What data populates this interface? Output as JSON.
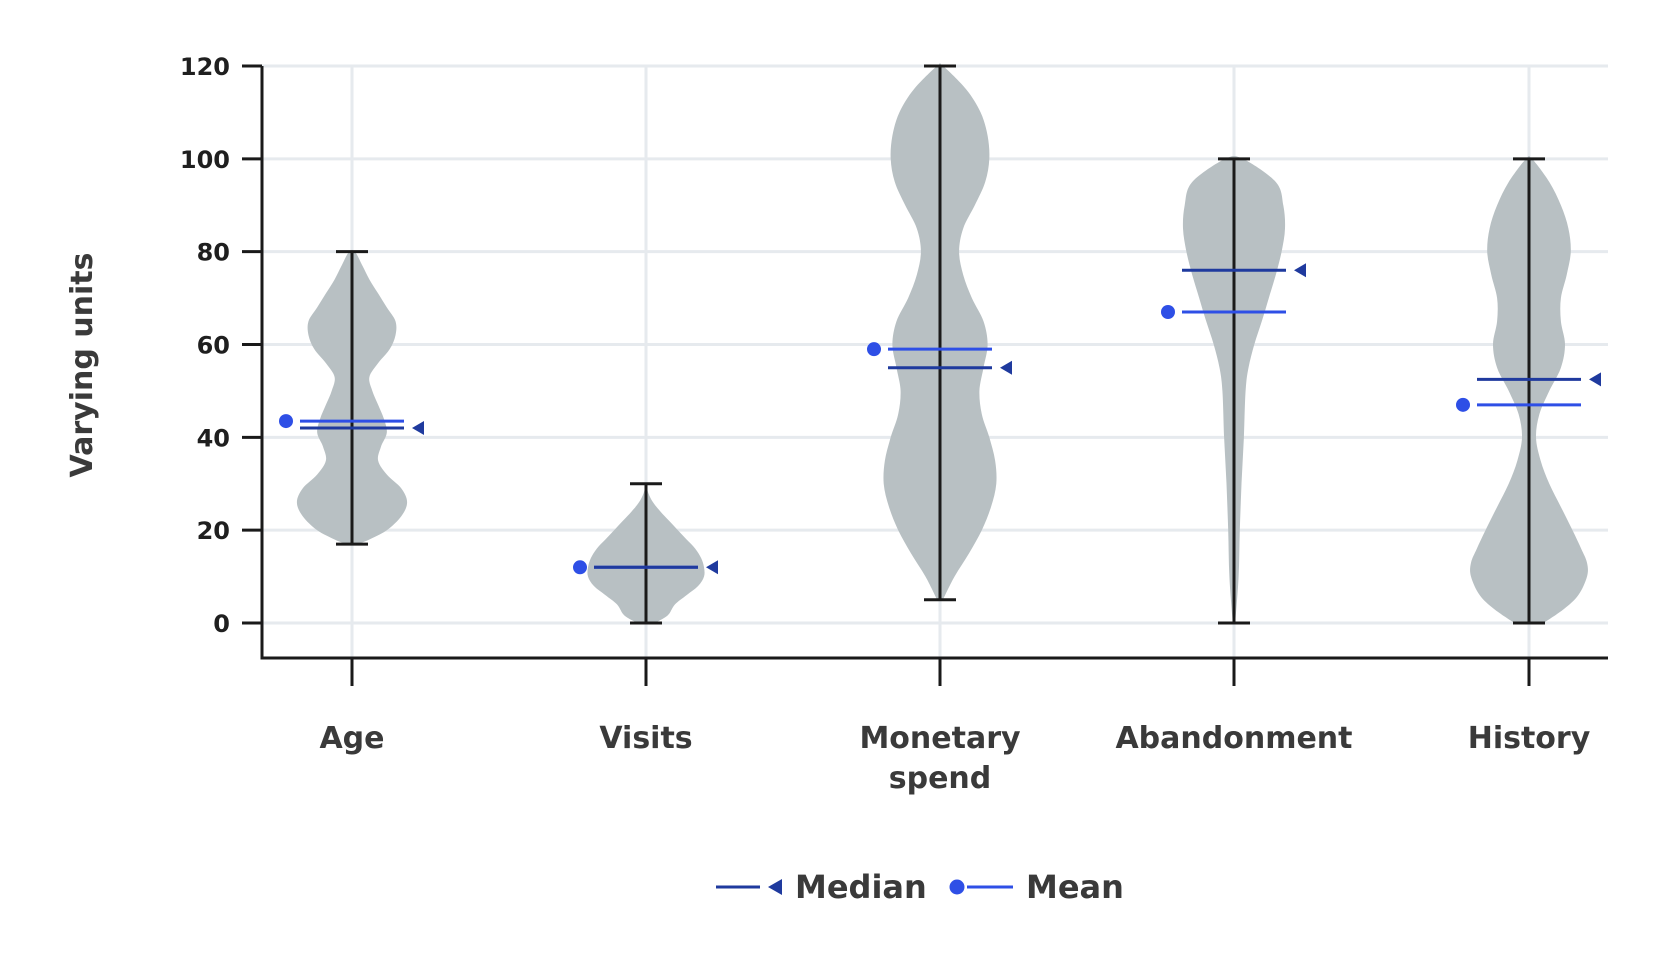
{
  "chart_data": {
    "type": "violin",
    "ylabel": "Varying units",
    "xlabel": "",
    "ylim": [
      -7.5,
      120
    ],
    "yticks": [
      0,
      20,
      40,
      60,
      80,
      100,
      120
    ],
    "grid": true,
    "legend_position": "bottom-center",
    "colors": {
      "violin": "#b8c0c3",
      "median": "#1f3a9e",
      "mean": "#2e4fe6",
      "whisker": "#1a1a1a",
      "grid": "#e6eaee",
      "axis": "#1a1a1a"
    },
    "legend": {
      "median_label": "Median",
      "mean_label": "Mean"
    },
    "categories": [
      {
        "label": [
          "Age"
        ],
        "min": 17,
        "max": 80,
        "median": 42,
        "mean": 43.5,
        "density": [
          [
            17,
            0.1
          ],
          [
            18,
            0.3
          ],
          [
            20,
            0.6
          ],
          [
            23,
            0.85
          ],
          [
            26,
            0.95
          ],
          [
            29,
            0.85
          ],
          [
            32,
            0.6
          ],
          [
            35,
            0.45
          ],
          [
            38,
            0.5
          ],
          [
            41,
            0.6
          ],
          [
            44,
            0.55
          ],
          [
            47,
            0.45
          ],
          [
            50,
            0.35
          ],
          [
            53,
            0.3
          ],
          [
            56,
            0.45
          ],
          [
            59,
            0.65
          ],
          [
            62,
            0.75
          ],
          [
            65,
            0.75
          ],
          [
            68,
            0.6
          ],
          [
            71,
            0.45
          ],
          [
            74,
            0.3
          ],
          [
            77,
            0.18
          ],
          [
            80,
            0.05
          ]
        ]
      },
      {
        "label": [
          "Visits"
        ],
        "min": 0,
        "max": 30,
        "median": 12,
        "mean": 12,
        "density": [
          [
            0,
            0.15
          ],
          [
            1,
            0.3
          ],
          [
            2,
            0.4
          ],
          [
            4,
            0.5
          ],
          [
            6,
            0.7
          ],
          [
            8,
            0.9
          ],
          [
            10,
            1.0
          ],
          [
            12,
            1.0
          ],
          [
            14,
            0.95
          ],
          [
            16,
            0.85
          ],
          [
            18,
            0.7
          ],
          [
            20,
            0.55
          ],
          [
            22,
            0.4
          ],
          [
            24,
            0.25
          ],
          [
            26,
            0.12
          ],
          [
            28,
            0.04
          ],
          [
            30,
            0.0
          ]
        ]
      },
      {
        "label": [
          "Monetary",
          "spend"
        ],
        "min": 5,
        "max": 120,
        "median": 55,
        "mean": 59,
        "density": [
          [
            5,
            0.05
          ],
          [
            10,
            0.25
          ],
          [
            15,
            0.5
          ],
          [
            20,
            0.72
          ],
          [
            25,
            0.88
          ],
          [
            30,
            0.97
          ],
          [
            35,
            0.95
          ],
          [
            40,
            0.85
          ],
          [
            45,
            0.72
          ],
          [
            50,
            0.68
          ],
          [
            55,
            0.75
          ],
          [
            60,
            0.82
          ],
          [
            65,
            0.75
          ],
          [
            70,
            0.55
          ],
          [
            75,
            0.4
          ],
          [
            80,
            0.33
          ],
          [
            85,
            0.4
          ],
          [
            90,
            0.6
          ],
          [
            95,
            0.78
          ],
          [
            100,
            0.85
          ],
          [
            105,
            0.82
          ],
          [
            110,
            0.7
          ],
          [
            115,
            0.45
          ],
          [
            120,
            0.05
          ]
        ]
      },
      {
        "label": [
          "Abandonment"
        ],
        "min": 0,
        "max": 100,
        "median": 76,
        "mean": 67,
        "density": [
          [
            0,
            0.02
          ],
          [
            10,
            0.08
          ],
          [
            20,
            0.1
          ],
          [
            30,
            0.13
          ],
          [
            40,
            0.17
          ],
          [
            50,
            0.2
          ],
          [
            55,
            0.25
          ],
          [
            60,
            0.35
          ],
          [
            65,
            0.48
          ],
          [
            70,
            0.6
          ],
          [
            75,
            0.72
          ],
          [
            80,
            0.82
          ],
          [
            85,
            0.88
          ],
          [
            90,
            0.85
          ],
          [
            95,
            0.72
          ],
          [
            100,
            0.15
          ]
        ]
      },
      {
        "label": [
          "History"
        ],
        "min": 0,
        "max": 100,
        "median": 52.5,
        "mean": 47,
        "density": [
          [
            0,
            0.25
          ],
          [
            3,
            0.6
          ],
          [
            6,
            0.85
          ],
          [
            10,
            1.0
          ],
          [
            13,
            1.0
          ],
          [
            16,
            0.9
          ],
          [
            20,
            0.75
          ],
          [
            25,
            0.55
          ],
          [
            30,
            0.35
          ],
          [
            35,
            0.2
          ],
          [
            40,
            0.12
          ],
          [
            45,
            0.18
          ],
          [
            50,
            0.35
          ],
          [
            55,
            0.55
          ],
          [
            60,
            0.62
          ],
          [
            65,
            0.55
          ],
          [
            70,
            0.55
          ],
          [
            75,
            0.65
          ],
          [
            80,
            0.72
          ],
          [
            85,
            0.68
          ],
          [
            90,
            0.55
          ],
          [
            95,
            0.35
          ],
          [
            100,
            0.05
          ]
        ]
      }
    ]
  }
}
